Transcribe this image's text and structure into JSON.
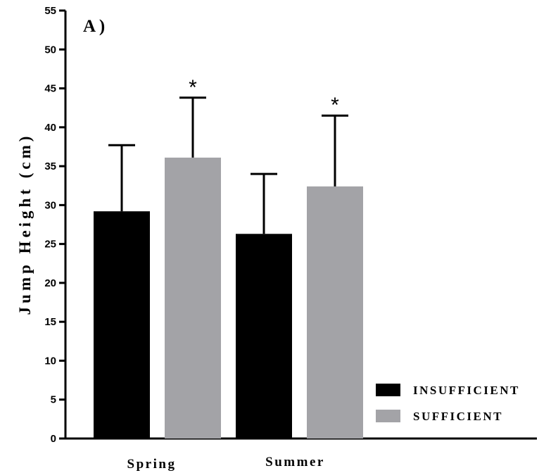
{
  "chart_data": {
    "type": "bar",
    "panel_label": "A )",
    "ylabel": "Jump Height (cm)",
    "xlabel": "",
    "ylim": [
      0,
      55
    ],
    "yticks": [
      0,
      5,
      10,
      15,
      20,
      25,
      30,
      35,
      40,
      45,
      50,
      55
    ],
    "categories": [
      "Spring",
      "Summer"
    ],
    "series": [
      {
        "name": "INSUFFICIENT",
        "color": "#000000",
        "values": [
          29.2,
          26.3
        ],
        "error": [
          8.5,
          7.7
        ],
        "significance": [
          "",
          ""
        ]
      },
      {
        "name": "SUFFICIENT",
        "color": "#a3a3a7",
        "values": [
          36.1,
          32.4
        ],
        "error": [
          7.7,
          9.1
        ],
        "significance": [
          "*",
          "*"
        ]
      }
    ],
    "legend_position": "bottom-right",
    "grid": false
  }
}
